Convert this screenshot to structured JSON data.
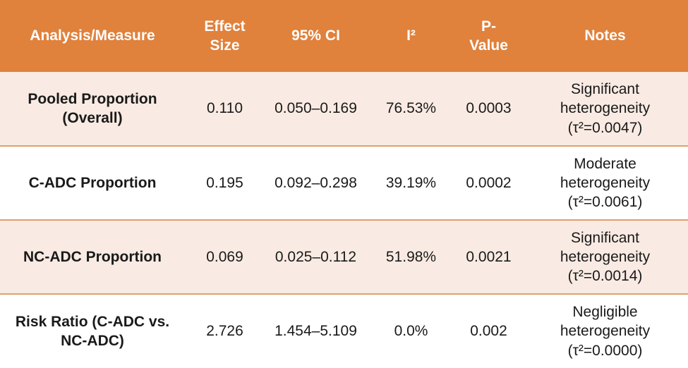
{
  "colors": {
    "header_bg": "#E0813C",
    "header_text": "#FFFFFF",
    "row_alt_bg": "#F9EBE3",
    "row_bg": "#FFFFFF",
    "separator": "#DEA26C",
    "body_text": "#1A1A1A"
  },
  "chart_data": {
    "type": "table",
    "columns": [
      "Analysis/Measure",
      "Effect Size",
      "95% CI",
      "I²",
      "P-Value",
      "Notes"
    ],
    "rows": [
      {
        "measure": "Pooled Proportion (Overall)",
        "effect_size": "0.110",
        "ci": "0.050–0.169",
        "i2": "76.53%",
        "p_value": "0.0003",
        "notes": "Significant heterogeneity",
        "tau": "(τ²=0.0047)"
      },
      {
        "measure": "C-ADC Proportion",
        "effect_size": "0.195",
        "ci": "0.092–0.298",
        "i2": "39.19%",
        "p_value": "0.0002",
        "notes": "Moderate heterogeneity",
        "tau": "(τ²=0.0061)"
      },
      {
        "measure": "NC-ADC Proportion",
        "effect_size": "0.069",
        "ci": "0.025–0.112",
        "i2": "51.98%",
        "p_value": "0.0021",
        "notes": "Significant heterogeneity",
        "tau": "(τ²=0.0014)"
      },
      {
        "measure": "Risk Ratio (C-ADC vs. NC-ADC)",
        "effect_size": "2.726",
        "ci": "1.454–5.109",
        "i2": "0.0%",
        "p_value": "0.002",
        "notes": "Negligible heterogeneity",
        "tau": "(τ²=0.0000)"
      }
    ]
  }
}
